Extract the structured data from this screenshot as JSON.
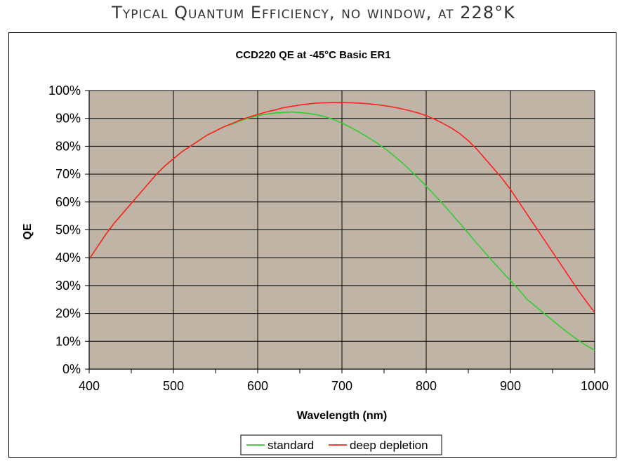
{
  "page": {
    "headline": "Typical Quantum Efficiency, no window, at 228°K"
  },
  "chart_data": {
    "type": "line",
    "title": "CCD220 QE  at -45°C  Basic ER1",
    "xlabel": "Wavelength (nm)",
    "ylabel": "QE",
    "xlim": [
      400,
      1000
    ],
    "ylim": [
      0,
      100
    ],
    "x_ticks": [
      400,
      500,
      600,
      700,
      800,
      900,
      1000
    ],
    "x_tick_labels": [
      "400",
      "500",
      "600",
      "700",
      "800",
      "900",
      "1000"
    ],
    "y_ticks": [
      0,
      10,
      20,
      30,
      40,
      50,
      60,
      70,
      80,
      90,
      100
    ],
    "y_tick_labels": [
      "0%",
      "10%",
      "20%",
      "30%",
      "40%",
      "50%",
      "60%",
      "70%",
      "80%",
      "90%",
      "100%"
    ],
    "grid": true,
    "plot_background": "#c0b4a6",
    "legend_position": "bottom-center",
    "x": [
      400,
      410,
      420,
      430,
      440,
      450,
      460,
      470,
      480,
      490,
      500,
      510,
      520,
      530,
      540,
      550,
      560,
      570,
      580,
      590,
      600,
      610,
      620,
      630,
      640,
      650,
      660,
      670,
      680,
      690,
      700,
      710,
      720,
      730,
      740,
      750,
      760,
      770,
      780,
      790,
      800,
      810,
      820,
      830,
      840,
      850,
      860,
      870,
      880,
      890,
      900,
      910,
      920,
      930,
      940,
      950,
      960,
      970,
      980,
      990,
      1000
    ],
    "series": [
      {
        "name": "standard",
        "color": "#33cc33",
        "values": [
          39.5,
          44.0,
          48.5,
          52.5,
          56.0,
          59.5,
          63.0,
          66.5,
          70.0,
          73.0,
          75.5,
          78.0,
          80.0,
          82.0,
          84.0,
          85.5,
          87.0,
          88.0,
          89.2,
          90.2,
          91.0,
          91.5,
          91.9,
          92.1,
          92.3,
          92.1,
          91.8,
          91.3,
          90.6,
          89.6,
          88.3,
          86.8,
          85.2,
          83.4,
          81.5,
          79.4,
          77.0,
          74.5,
          71.7,
          68.8,
          65.7,
          62.5,
          59.2,
          55.8,
          52.3,
          48.8,
          45.2,
          41.8,
          38.3,
          35.0,
          31.8,
          28.5,
          25.0,
          22.5,
          20.0,
          17.5,
          15.0,
          12.7,
          10.5,
          8.5,
          6.8
        ]
      },
      {
        "name": "deep depletion",
        "color": "#ff2020",
        "values": [
          39.5,
          44.0,
          48.5,
          52.5,
          56.0,
          59.5,
          63.0,
          66.5,
          70.0,
          73.0,
          75.5,
          78.0,
          80.0,
          82.0,
          84.0,
          85.5,
          87.0,
          88.2,
          89.5,
          90.5,
          91.4,
          92.3,
          93.0,
          93.8,
          94.3,
          94.8,
          95.2,
          95.5,
          95.6,
          95.7,
          95.7,
          95.6,
          95.5,
          95.3,
          95.0,
          94.6,
          94.1,
          93.5,
          92.8,
          92.0,
          91.0,
          89.7,
          88.2,
          86.5,
          84.5,
          82.0,
          79.0,
          75.5,
          72.0,
          68.5,
          64.5,
          60.0,
          55.5,
          51.0,
          46.5,
          42.0,
          37.5,
          33.0,
          28.5,
          24.3,
          20.3
        ]
      }
    ]
  }
}
